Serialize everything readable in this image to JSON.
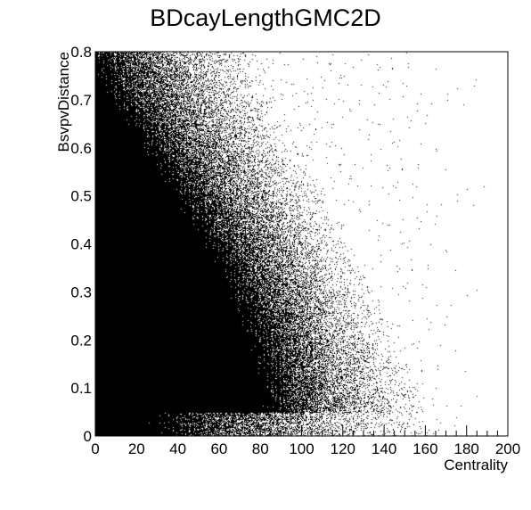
{
  "chart_data": {
    "type": "scatter",
    "title": "BDcayLengthGMC2D",
    "xlabel": "Centrality",
    "ylabel": "BsvpvDistance",
    "xlim": [
      0,
      200
    ],
    "ylim": [
      0,
      0.8
    ],
    "x_ticks": [
      0,
      20,
      40,
      60,
      80,
      100,
      120,
      140,
      160,
      180,
      200
    ],
    "y_ticks": [
      0,
      0.1,
      0.2,
      0.3,
      0.4,
      0.5,
      0.6,
      0.7,
      0.8
    ],
    "x_tick_labels": [
      "0",
      "20",
      "40",
      "60",
      "80",
      "100",
      "120",
      "140",
      "160",
      "180",
      "200"
    ],
    "y_tick_labels": [
      "0",
      "0.1",
      "0.2",
      "0.3",
      "0.4",
      "0.5",
      "0.6",
      "0.7",
      "0.8"
    ],
    "grid": false,
    "legend": "none",
    "marker_color": "#000000",
    "density_model": {
      "description": "2D histogram drawn as scatter; density high at low centrality and low distance, decaying with both",
      "centrality_extent": 175,
      "distance_peak": 0.15,
      "distance_floor": 0.05
    }
  }
}
